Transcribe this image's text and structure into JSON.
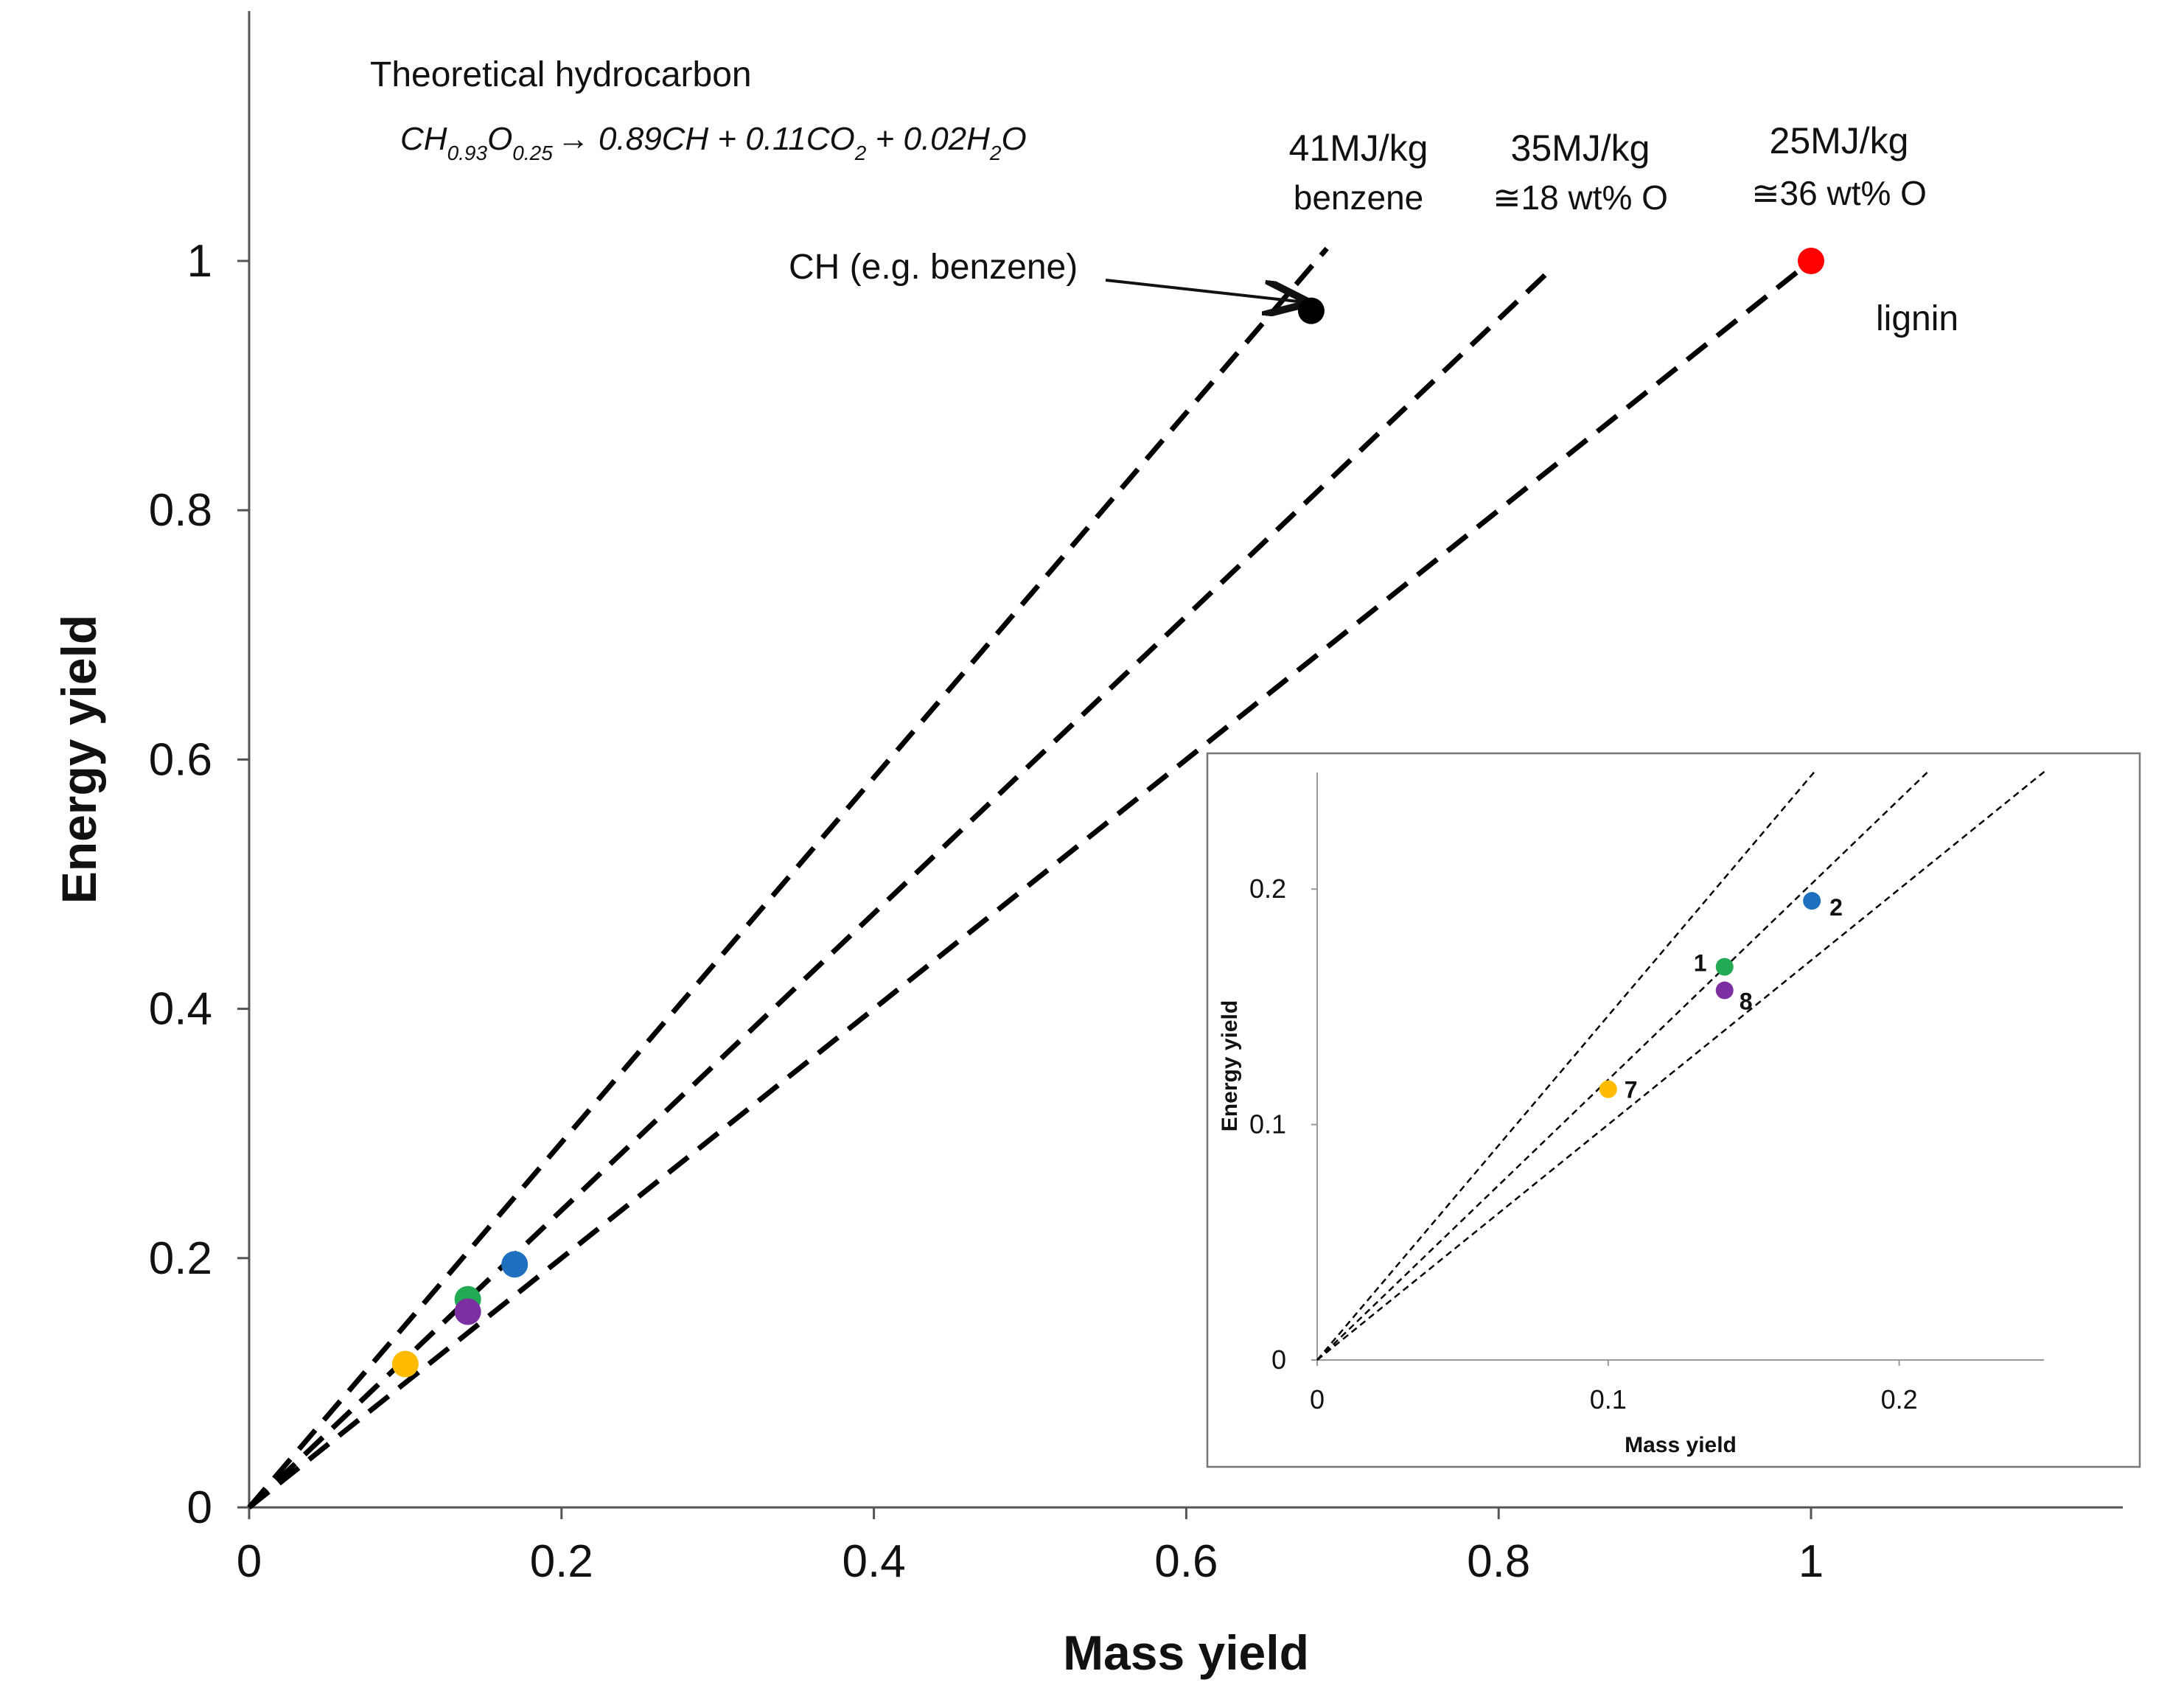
{
  "chart_data": [
    {
      "id": "main",
      "type": "scatter",
      "title": "",
      "xlabel": "Mass yield",
      "ylabel": "Energy yield",
      "xlim": [
        0,
        1.2
      ],
      "ylim": [
        0,
        1.2
      ],
      "x_ticks": [
        "0",
        "0.2",
        "0.4",
        "0.6",
        "0.8",
        "1"
      ],
      "x_tick_values": [
        0,
        0.2,
        0.4,
        0.6,
        0.8,
        1
      ],
      "y_ticks": [
        "0",
        "0.2",
        "0.4",
        "0.6",
        "0.8",
        "1"
      ],
      "y_tick_values": [
        0,
        0.2,
        0.4,
        0.6,
        0.8,
        1
      ],
      "grid": false,
      "lines": [
        {
          "name": "41MJ/kg",
          "sublabel": "benzene",
          "x_end": 0.69,
          "y_end": 1.01,
          "style": "dashed"
        },
        {
          "name": "35MJ/kg",
          "sublabel": "≅18 wt% O",
          "x_end": 0.835,
          "y_end": 0.995,
          "style": "dashed"
        },
        {
          "name": "25MJ/kg",
          "sublabel": "≅36 wt% O",
          "x_end": 1.0,
          "y_end": 1.0,
          "style": "dashed"
        }
      ],
      "points": [
        {
          "name": "CH (e.g. benzene)",
          "x": 0.68,
          "y": 0.96,
          "color": "#000000"
        },
        {
          "name": "lignin",
          "x": 1.0,
          "y": 1.0,
          "color": "#ff0000"
        },
        {
          "name": "2",
          "x": 0.17,
          "y": 0.195,
          "color": "#1f6fbf"
        },
        {
          "name": "1",
          "x": 0.14,
          "y": 0.167,
          "color": "#22aa55"
        },
        {
          "name": "8",
          "x": 0.14,
          "y": 0.157,
          "color": "#7b2fa0"
        },
        {
          "name": "7",
          "x": 0.1,
          "y": 0.115,
          "color": "#ffbb00"
        }
      ],
      "annotations": {
        "equation_title": "Theoretical hydrocarbon",
        "equation_parts": [
          "CH",
          "0.93",
          "O",
          "0.25",
          "→ 0.89CH + 0.11CO",
          "2",
          " + 0.02H",
          "2",
          "O"
        ],
        "arrow_label": "CH (e.g. benzene)",
        "lignin_label": "lignin"
      }
    },
    {
      "id": "inset",
      "type": "scatter",
      "title": "",
      "xlabel": "Mass yield",
      "ylabel": "Energy yield",
      "xlim": [
        0,
        0.25
      ],
      "ylim": [
        0,
        0.25
      ],
      "x_ticks": [
        "0",
        "0.1",
        "0.2"
      ],
      "x_tick_values": [
        0,
        0.1,
        0.2
      ],
      "y_ticks": [
        "0",
        "0.1",
        "0.2"
      ],
      "y_tick_values": [
        0,
        0.1,
        0.2
      ],
      "grid": false,
      "lines": [
        {
          "name": "41MJ/kg",
          "x_end": 0.171,
          "y_end": 0.25,
          "style": "dotted"
        },
        {
          "name": "35MJ/kg",
          "x_end": 0.21,
          "y_end": 0.25,
          "style": "dotted"
        },
        {
          "name": "25MJ/kg",
          "x_end": 0.25,
          "y_end": 0.25,
          "style": "dotted"
        }
      ],
      "points": [
        {
          "name": "2",
          "x": 0.17,
          "y": 0.195,
          "color": "#1f6fbf"
        },
        {
          "name": "1",
          "x": 0.14,
          "y": 0.167,
          "color": "#22aa55"
        },
        {
          "name": "8",
          "x": 0.14,
          "y": 0.157,
          "color": "#7b2fa0"
        },
        {
          "name": "7",
          "x": 0.1,
          "y": 0.115,
          "color": "#ffbb00"
        }
      ]
    }
  ]
}
